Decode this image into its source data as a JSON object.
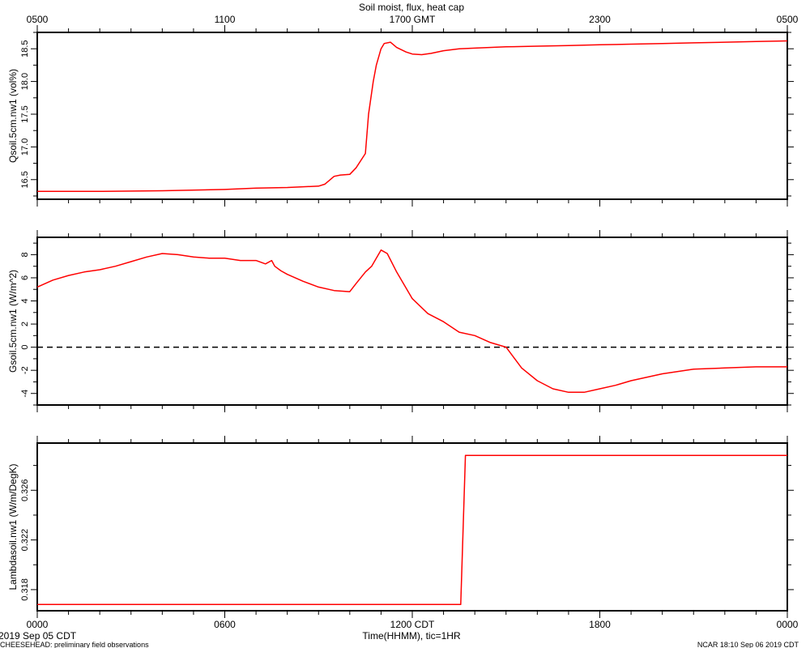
{
  "title": "Soil moist, flux, heat cap",
  "top_axis": {
    "ticks": [
      {
        "x": 0,
        "label": "0500"
      },
      {
        "x": 6,
        "label": "1100"
      },
      {
        "x": 12,
        "label": "1700 GMT"
      },
      {
        "x": 18,
        "label": "2300"
      },
      {
        "x": 24,
        "label": "0500"
      }
    ]
  },
  "bottom_axis": {
    "ticks": [
      {
        "x": 0,
        "label": "0000"
      },
      {
        "x": 6,
        "label": "0600"
      },
      {
        "x": 12,
        "label": "1200 CDT"
      },
      {
        "x": 18,
        "label": "1800"
      },
      {
        "x": 24,
        "label": "0000"
      }
    ],
    "label": "Time(HHMM), tic=1HR"
  },
  "footer": {
    "date": "2019 Sep 05 CDT",
    "project": "CHEESEHEAD: preliminary field observations",
    "stamp": "NCAR 18:10 Sep 06 2019 CDT"
  },
  "colors": {
    "series": "#ff0000",
    "axes": "#000000",
    "zero_line": "#000000"
  },
  "chart_data": [
    {
      "type": "line",
      "ylabel": "Qsoil.5cm.nw1 (vol%)",
      "xlim": [
        0,
        24
      ],
      "ylim": [
        16.2,
        18.75
      ],
      "yticks": [
        16.5,
        17.0,
        17.5,
        18.0,
        18.5
      ],
      "ytick_labels": [
        "16.5",
        "17.0",
        "17.5",
        "18.0",
        "18.5"
      ],
      "series": [
        {
          "x": [
            0,
            2,
            4,
            6,
            7,
            8,
            9.0,
            9.2,
            9.5,
            9.7,
            10.0,
            10.2,
            10.5,
            10.6,
            10.75,
            10.85,
            11.0,
            11.1,
            11.3,
            11.5,
            11.8,
            12.0,
            12.3,
            12.6,
            13.0,
            13.5,
            14,
            15,
            16,
            17,
            18,
            19,
            20,
            21,
            22,
            23,
            24
          ],
          "y": [
            16.32,
            16.32,
            16.33,
            16.35,
            16.37,
            16.38,
            16.4,
            16.43,
            16.55,
            16.57,
            16.58,
            16.68,
            16.9,
            17.5,
            18.0,
            18.25,
            18.5,
            18.58,
            18.6,
            18.52,
            18.45,
            18.42,
            18.41,
            18.43,
            18.47,
            18.5,
            18.51,
            18.53,
            18.54,
            18.55,
            18.56,
            18.57,
            18.58,
            18.59,
            18.6,
            18.61,
            18.62
          ]
        }
      ]
    },
    {
      "type": "line",
      "ylabel": "Gsoil.5cm.nw1 (W/m^2)",
      "xlim": [
        0,
        24
      ],
      "ylim": [
        -5,
        9.5
      ],
      "yticks": [
        -4,
        -2,
        0,
        2,
        4,
        6,
        8
      ],
      "ytick_labels": [
        "-4",
        "-2",
        "0",
        "2",
        "4",
        "6",
        "8"
      ],
      "reference_line": 0,
      "series": [
        {
          "x": [
            0,
            0.5,
            1,
            1.5,
            2,
            2.5,
            3,
            3.5,
            4,
            4.5,
            5,
            5.5,
            6,
            6.5,
            7,
            7.3,
            7.5,
            7.6,
            7.8,
            8,
            8.5,
            9,
            9.5,
            10,
            10.2,
            10.5,
            10.7,
            11.0,
            11.2,
            11.5,
            12,
            12.5,
            13,
            13.5,
            14,
            14.5,
            15,
            15.5,
            16,
            16.5,
            17,
            17.5,
            18,
            18.5,
            19,
            20,
            21,
            22,
            23,
            24
          ],
          "y": [
            5.2,
            5.8,
            6.2,
            6.5,
            6.7,
            7.0,
            7.4,
            7.8,
            8.1,
            8.0,
            7.8,
            7.7,
            7.7,
            7.5,
            7.5,
            7.2,
            7.5,
            7.0,
            6.6,
            6.3,
            5.7,
            5.2,
            4.9,
            4.8,
            5.5,
            6.5,
            7.0,
            8.4,
            8.1,
            6.5,
            4.2,
            2.9,
            2.2,
            1.3,
            1.0,
            0.4,
            0.0,
            -1.8,
            -2.9,
            -3.6,
            -3.9,
            -3.9,
            -3.6,
            -3.3,
            -2.9,
            -2.3,
            -1.9,
            -1.8,
            -1.7,
            -1.7
          ]
        }
      ]
    },
    {
      "type": "line",
      "ylabel": "Lambdasoil.nw1 (W/m/DegK)",
      "xlim": [
        0,
        24
      ],
      "ylim": [
        0.3163,
        0.3298
      ],
      "yticks": [
        0.318,
        0.322,
        0.326
      ],
      "ytick_labels": [
        "0.318",
        "0.322",
        "0.326"
      ],
      "series": [
        {
          "x": [
            0,
            13.55,
            13.7,
            24
          ],
          "y": [
            0.3168,
            0.3168,
            0.3288,
            0.3288
          ]
        }
      ]
    }
  ]
}
